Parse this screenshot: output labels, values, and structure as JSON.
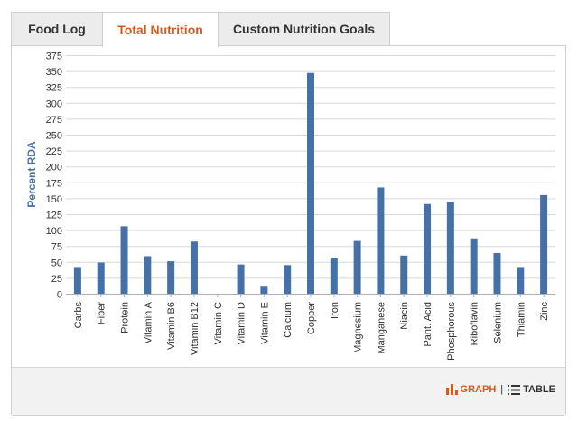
{
  "tabs": [
    {
      "label": "Food Log",
      "active": false
    },
    {
      "label": "Total Nutrition",
      "active": true
    },
    {
      "label": "Custom Nutrition Goals",
      "active": false
    }
  ],
  "view_toggle": {
    "graph_label": "GRAPH",
    "separator": "|",
    "table_label": "TABLE",
    "selected": "graph"
  },
  "colors": {
    "accent": "#d85a1a",
    "bar": "#4571a6",
    "axis_label": "#4572a7"
  },
  "chart_data": {
    "type": "bar",
    "ylabel": "Percent RDA",
    "xlabel": "",
    "ylim": [
      0,
      375
    ],
    "yticks": [
      0,
      25,
      50,
      75,
      100,
      125,
      150,
      175,
      200,
      225,
      250,
      275,
      300,
      325,
      350,
      375
    ],
    "grid": true,
    "categories": [
      "Carbs",
      "Fiber",
      "Protein",
      "Vitamin A",
      "Vitamin B6",
      "Vitamin B12",
      "Vitamin C",
      "Vitamin D",
      "Vitamin E",
      "Calcium",
      "Copper",
      "Iron",
      "Magnesium",
      "Manganese",
      "Niacin",
      "Pant. Acid",
      "Phosphorous",
      "Riboflavin",
      "Selenium",
      "Thiamin",
      "Zinc"
    ],
    "values": [
      42,
      49,
      106,
      59,
      51,
      82,
      0,
      46,
      11,
      45,
      347,
      56,
      83,
      167,
      60,
      141,
      144,
      87,
      64,
      42,
      155
    ]
  }
}
